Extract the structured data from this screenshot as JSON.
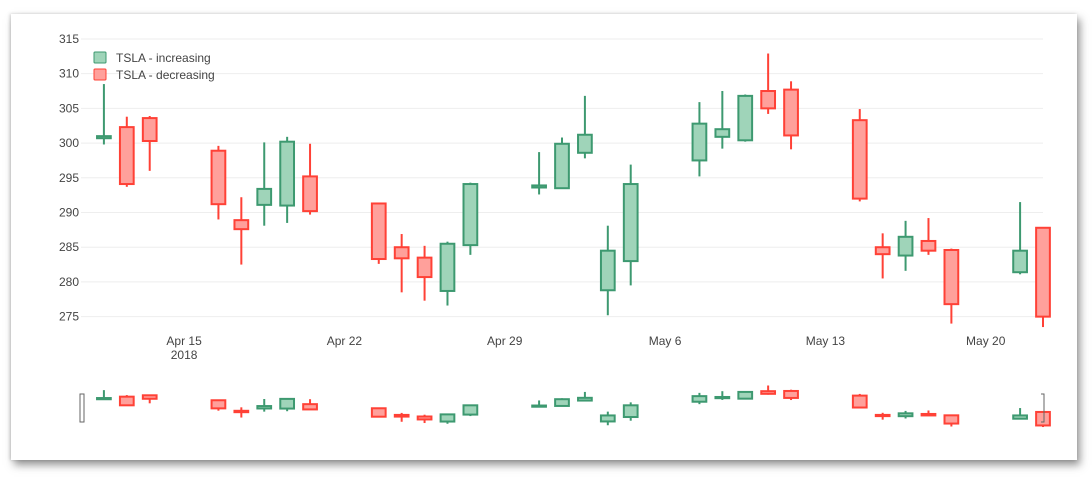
{
  "chart_data": {
    "type": "candlestick",
    "xaxis": {
      "tick_labels": [
        {
          "date": "2018-04-15",
          "label": "Apr 15",
          "sublabel": "2018"
        },
        {
          "date": "2018-04-22",
          "label": "Apr 22"
        },
        {
          "date": "2018-04-29",
          "label": "Apr 29"
        },
        {
          "date": "2018-05-06",
          "label": "May 6"
        },
        {
          "date": "2018-05-13",
          "label": "May 13"
        },
        {
          "date": "2018-05-20",
          "label": "May 20"
        }
      ]
    },
    "yaxis": {
      "range": [
        272.5,
        316
      ],
      "ticks": [
        275,
        280,
        285,
        290,
        295,
        300,
        305,
        310,
        315
      ]
    },
    "grid": true,
    "legend_position": "top-left",
    "rangeslider": true,
    "series": [
      {
        "name": "TSLA - increasing",
        "direction": "increasing",
        "line_color": "#3d9970",
        "fill_color": "#9fd4b9"
      },
      {
        "name": "TSLA - decreasing",
        "direction": "decreasing",
        "line_color": "#ff4136",
        "fill_color": "#ffa09b"
      }
    ],
    "ohlc": [
      {
        "date": "2018-04-11",
        "open": 300.7,
        "high": 308.5,
        "low": 299.8,
        "close": 301.0
      },
      {
        "date": "2018-04-12",
        "open": 302.3,
        "high": 303.8,
        "low": 293.7,
        "close": 294.1
      },
      {
        "date": "2018-04-13",
        "open": 303.6,
        "high": 303.9,
        "low": 296.0,
        "close": 300.3
      },
      {
        "date": "2018-04-16",
        "open": 298.9,
        "high": 299.6,
        "low": 289.0,
        "close": 291.2
      },
      {
        "date": "2018-04-17",
        "open": 288.9,
        "high": 292.2,
        "low": 282.5,
        "close": 287.6
      },
      {
        "date": "2018-04-18",
        "open": 291.1,
        "high": 300.1,
        "low": 288.1,
        "close": 293.4
      },
      {
        "date": "2018-04-19",
        "open": 291.0,
        "high": 300.9,
        "low": 288.5,
        "close": 300.2
      },
      {
        "date": "2018-04-20",
        "open": 295.2,
        "high": 299.9,
        "low": 289.7,
        "close": 290.2
      },
      {
        "date": "2018-04-23",
        "open": 291.3,
        "high": 291.4,
        "low": 282.6,
        "close": 283.3
      },
      {
        "date": "2018-04-24",
        "open": 285.0,
        "high": 286.9,
        "low": 278.5,
        "close": 283.4
      },
      {
        "date": "2018-04-25",
        "open": 283.5,
        "high": 285.2,
        "low": 277.3,
        "close": 280.7
      },
      {
        "date": "2018-04-26",
        "open": 278.7,
        "high": 285.8,
        "low": 276.6,
        "close": 285.5
      },
      {
        "date": "2018-04-27",
        "open": 285.3,
        "high": 294.3,
        "low": 283.9,
        "close": 294.1
      },
      {
        "date": "2018-04-30",
        "open": 293.6,
        "high": 298.7,
        "low": 292.6,
        "close": 293.9
      },
      {
        "date": "2018-05-01",
        "open": 293.5,
        "high": 300.8,
        "low": 293.4,
        "close": 299.9
      },
      {
        "date": "2018-05-02",
        "open": 298.6,
        "high": 306.8,
        "low": 297.8,
        "close": 301.2
      },
      {
        "date": "2018-05-03",
        "open": 278.8,
        "high": 288.1,
        "low": 275.2,
        "close": 284.5
      },
      {
        "date": "2018-05-04",
        "open": 283.0,
        "high": 296.9,
        "low": 279.5,
        "close": 294.1
      },
      {
        "date": "2018-05-07",
        "open": 297.5,
        "high": 305.9,
        "low": 295.2,
        "close": 302.8
      },
      {
        "date": "2018-05-08",
        "open": 300.9,
        "high": 307.5,
        "low": 299.2,
        "close": 302.0
      },
      {
        "date": "2018-05-09",
        "open": 300.4,
        "high": 307.0,
        "low": 300.2,
        "close": 306.8
      },
      {
        "date": "2018-05-10",
        "open": 307.5,
        "high": 312.9,
        "low": 304.2,
        "close": 305.0
      },
      {
        "date": "2018-05-11",
        "open": 307.7,
        "high": 308.9,
        "low": 299.1,
        "close": 301.1
      },
      {
        "date": "2018-05-14",
        "open": 303.3,
        "high": 304.9,
        "low": 291.6,
        "close": 292.0
      },
      {
        "date": "2018-05-15",
        "open": 285.0,
        "high": 287.0,
        "low": 280.5,
        "close": 284.0
      },
      {
        "date": "2018-05-16",
        "open": 283.8,
        "high": 288.8,
        "low": 281.6,
        "close": 286.5
      },
      {
        "date": "2018-05-17",
        "open": 285.9,
        "high": 289.2,
        "low": 283.9,
        "close": 284.5
      },
      {
        "date": "2018-05-18",
        "open": 284.6,
        "high": 284.8,
        "low": 274.0,
        "close": 276.8
      },
      {
        "date": "2018-05-21",
        "open": 281.4,
        "high": 291.5,
        "low": 281.1,
        "close": 284.5
      },
      {
        "date": "2018-05-22",
        "open": 287.8,
        "high": 287.9,
        "low": 273.5,
        "close": 275.0
      }
    ]
  }
}
